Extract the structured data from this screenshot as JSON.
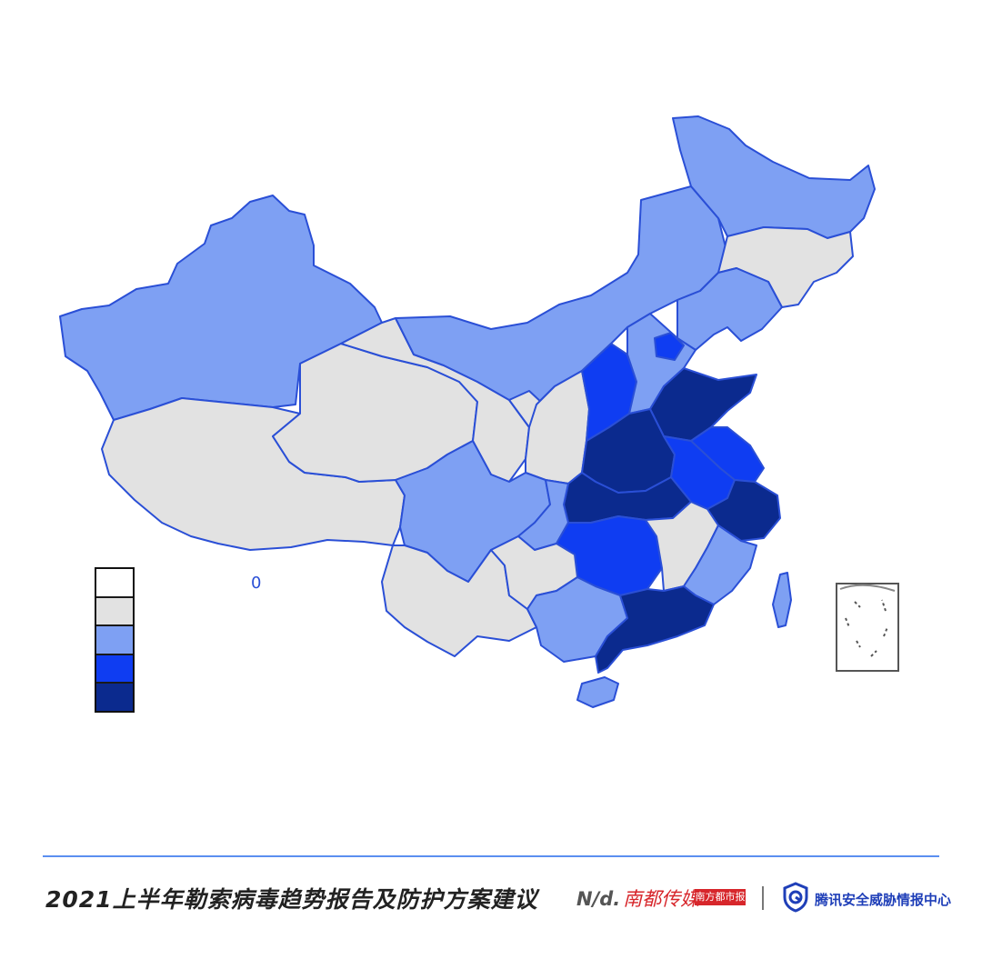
{
  "map": {
    "colors": {
      "level1": "#ffffff",
      "level2": "#e2e2e2",
      "level3": "#7ea0f3",
      "level4": "#0f3df2",
      "level5": "#0b2a8e"
    },
    "small_label": "0",
    "regions": [
      {
        "name": "xinjiang",
        "level": "level3"
      },
      {
        "name": "tibet",
        "level": "level2"
      },
      {
        "name": "qinghai",
        "level": "level2"
      },
      {
        "name": "gansu",
        "level": "level2"
      },
      {
        "name": "inner-mongolia",
        "level": "level3"
      },
      {
        "name": "heilongjiang",
        "level": "level3"
      },
      {
        "name": "jilin",
        "level": "level2"
      },
      {
        "name": "liaoning",
        "level": "level3"
      },
      {
        "name": "ningxia",
        "level": "level2"
      },
      {
        "name": "shaanxi",
        "level": "level2"
      },
      {
        "name": "shanxi",
        "level": "level4"
      },
      {
        "name": "hebei",
        "level": "level3"
      },
      {
        "name": "beijing",
        "level": "level4"
      },
      {
        "name": "shandong",
        "level": "level5"
      },
      {
        "name": "henan",
        "level": "level5"
      },
      {
        "name": "jiangsu",
        "level": "level4"
      },
      {
        "name": "anhui",
        "level": "level4"
      },
      {
        "name": "hubei",
        "level": "level5"
      },
      {
        "name": "zhejiang",
        "level": "level5"
      },
      {
        "name": "sichuan",
        "level": "level3"
      },
      {
        "name": "chongqing",
        "level": "level3"
      },
      {
        "name": "hunan",
        "level": "level4"
      },
      {
        "name": "jiangxi",
        "level": "level2"
      },
      {
        "name": "fujian",
        "level": "level3"
      },
      {
        "name": "yunnan",
        "level": "level2"
      },
      {
        "name": "guizhou",
        "level": "level2"
      },
      {
        "name": "guangxi",
        "level": "level3"
      },
      {
        "name": "guangdong",
        "level": "level5"
      },
      {
        "name": "hainan",
        "level": "level3"
      },
      {
        "name": "taiwan",
        "level": "level3"
      }
    ]
  },
  "legend": {
    "swatches": [
      "level1",
      "level2",
      "level3",
      "level4",
      "level5"
    ]
  },
  "footer": {
    "title": "2021上半年勒索病毒趋势报告及防护方案建议",
    "nd_mark": "N/d.",
    "nd_name": "南都传媒",
    "nd_badge": "南方都市报",
    "tencent_name": "腾讯安全威胁情报中心"
  }
}
